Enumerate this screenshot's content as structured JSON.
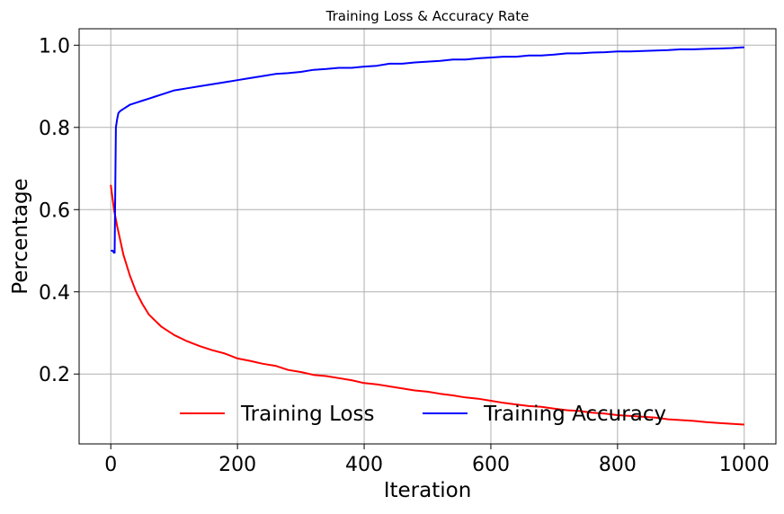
{
  "chart_data": {
    "type": "line",
    "title": "Training Loss & Accuracy Rate",
    "xlabel": "Iteration",
    "ylabel": "Percentage",
    "xlim": [
      -50,
      1050
    ],
    "ylim": [
      0.03,
      1.04
    ],
    "xticks": [
      0,
      200,
      400,
      600,
      800,
      1000
    ],
    "xtick_labels": [
      "0",
      "200",
      "400",
      "600",
      "800",
      "1000"
    ],
    "yticks": [
      0.2,
      0.4,
      0.6,
      0.8,
      1.0
    ],
    "ytick_labels": [
      "0.2",
      "0.4",
      "0.6",
      "0.8",
      "1.0"
    ],
    "grid": true,
    "legend": {
      "placement": "lower-center",
      "ncol": 2
    },
    "series": [
      {
        "name": "Training Loss",
        "color": "#ff0000",
        "x": [
          0,
          5,
          10,
          20,
          30,
          40,
          50,
          60,
          70,
          80,
          90,
          100,
          120,
          140,
          160,
          180,
          200,
          220,
          240,
          260,
          280,
          300,
          320,
          340,
          360,
          380,
          400,
          420,
          440,
          460,
          480,
          500,
          520,
          540,
          560,
          580,
          600,
          620,
          640,
          660,
          680,
          700,
          720,
          740,
          760,
          780,
          800,
          820,
          840,
          860,
          880,
          900,
          920,
          940,
          960,
          980,
          1000
        ],
        "y": [
          0.66,
          0.6,
          0.56,
          0.49,
          0.44,
          0.4,
          0.37,
          0.345,
          0.33,
          0.315,
          0.305,
          0.295,
          0.28,
          0.268,
          0.258,
          0.25,
          0.238,
          0.232,
          0.225,
          0.22,
          0.21,
          0.205,
          0.198,
          0.195,
          0.19,
          0.185,
          0.178,
          0.175,
          0.17,
          0.165,
          0.16,
          0.157,
          0.152,
          0.148,
          0.143,
          0.14,
          0.135,
          0.13,
          0.126,
          0.122,
          0.12,
          0.116,
          0.112,
          0.11,
          0.106,
          0.104,
          0.1,
          0.098,
          0.096,
          0.094,
          0.09,
          0.088,
          0.086,
          0.083,
          0.081,
          0.079,
          0.077
        ]
      },
      {
        "name": "Training Accuracy",
        "color": "#0000ff",
        "x": [
          0,
          3,
          5,
          6,
          8,
          10,
          12,
          15,
          20,
          30,
          40,
          50,
          60,
          70,
          80,
          90,
          100,
          120,
          140,
          160,
          180,
          200,
          220,
          240,
          260,
          280,
          300,
          320,
          340,
          360,
          380,
          400,
          420,
          440,
          460,
          480,
          500,
          520,
          540,
          560,
          580,
          600,
          620,
          640,
          660,
          680,
          700,
          720,
          740,
          760,
          780,
          800,
          820,
          840,
          860,
          880,
          900,
          920,
          940,
          960,
          980,
          990,
          1000
        ],
        "y": [
          0.5,
          0.5,
          0.495,
          0.495,
          0.8,
          0.82,
          0.835,
          0.84,
          0.845,
          0.855,
          0.86,
          0.865,
          0.87,
          0.875,
          0.88,
          0.885,
          0.89,
          0.895,
          0.9,
          0.905,
          0.91,
          0.915,
          0.92,
          0.925,
          0.93,
          0.932,
          0.935,
          0.94,
          0.942,
          0.945,
          0.945,
          0.948,
          0.95,
          0.955,
          0.955,
          0.958,
          0.96,
          0.962,
          0.965,
          0.965,
          0.968,
          0.97,
          0.972,
          0.972,
          0.975,
          0.975,
          0.977,
          0.98,
          0.98,
          0.982,
          0.983,
          0.985,
          0.985,
          0.986,
          0.987,
          0.988,
          0.99,
          0.99,
          0.991,
          0.992,
          0.993,
          0.994,
          0.995
        ]
      }
    ]
  }
}
